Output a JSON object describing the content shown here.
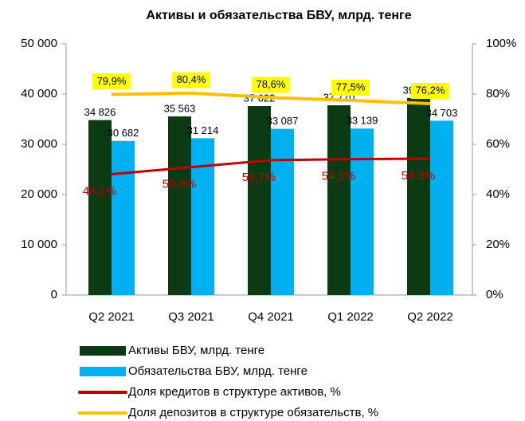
{
  "chart_data": {
    "type": "bar",
    "title": "Активы и обязательства БВУ, млрд. тенге",
    "categories": [
      "Q2 2021",
      "Q3 2021",
      "Q4 2021",
      "Q1 2022",
      "Q2 2022"
    ],
    "series": [
      {
        "name": "Активы БВУ, млрд. тенге",
        "color": "#0b3a13",
        "values": [
          34826,
          35563,
          37622,
          37770,
          39228
        ],
        "value_labels": [
          "34 826",
          "35 563",
          "37 622",
          "37 770",
          "39 228"
        ]
      },
      {
        "name": "Обязательства БВУ, млрд. тенге",
        "color": "#00b0f0",
        "values": [
          30682,
          31214,
          33087,
          33139,
          34703
        ],
        "value_labels": [
          "30 682",
          "31 214",
          "33 087",
          "33 139",
          "34 703"
        ]
      },
      {
        "name": "Доля кредитов в структуре активов, %",
        "type": "line",
        "axis": "y2",
        "color": "#c00000",
        "values": [
          48.1,
          50.9,
          53.7,
          54.1,
          54.3
        ],
        "value_labels": [
          "48,1%",
          "50,9%",
          "53,7%",
          "54,1%",
          "54,3%"
        ]
      },
      {
        "name": "Доля депозитов в структуре обязательств, %",
        "type": "line",
        "axis": "y2",
        "color": "#ffc000",
        "values": [
          79.9,
          80.4,
          78.6,
          77.5,
          76.2
        ],
        "value_labels": [
          "79,9%",
          "80,4%",
          "78,6%",
          "77,5%",
          "76,2%"
        ]
      }
    ],
    "ylim": [
      0,
      50000
    ],
    "yticks": [
      {
        "value": 0,
        "label": "0"
      },
      {
        "value": 10000,
        "label": "10 000"
      },
      {
        "value": 20000,
        "label": "20 000"
      },
      {
        "value": 30000,
        "label": "30 000"
      },
      {
        "value": 40000,
        "label": "40 000"
      },
      {
        "value": 50000,
        "label": "50 000"
      }
    ],
    "y2lim": [
      0,
      100
    ],
    "y2ticks": [
      {
        "value": 0,
        "label": "0%"
      },
      {
        "value": 20,
        "label": "20%"
      },
      {
        "value": 40,
        "label": "40%"
      },
      {
        "value": 60,
        "label": "60%"
      },
      {
        "value": 80,
        "label": "80%"
      },
      {
        "value": 100,
        "label": "100%"
      }
    ],
    "grid": false
  }
}
